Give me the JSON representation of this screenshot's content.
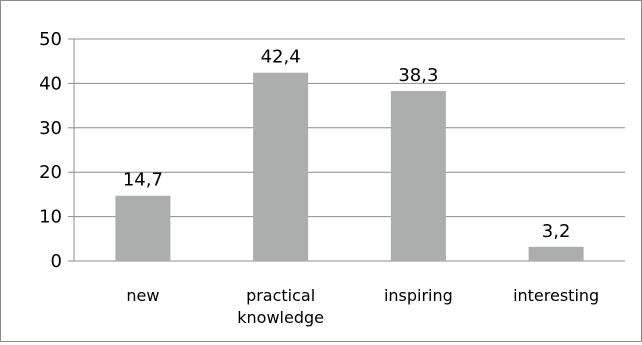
{
  "chart_data": {
    "type": "bar",
    "categories": [
      [
        "new"
      ],
      [
        "practical",
        "knowledge"
      ],
      [
        "inspiring"
      ],
      [
        "interesting"
      ]
    ],
    "values": [
      14.7,
      42.4,
      38.3,
      3.2
    ],
    "data_labels": [
      "14,7",
      "42,4",
      "38,3",
      "3,2"
    ],
    "yticks": [
      0,
      10,
      20,
      30,
      40,
      50
    ],
    "ylim": [
      0,
      50
    ],
    "title": "",
    "xlabel": "",
    "ylabel": "",
    "grid": true,
    "bar_color": "#acadad",
    "grid_color": "#8c8c8c"
  }
}
